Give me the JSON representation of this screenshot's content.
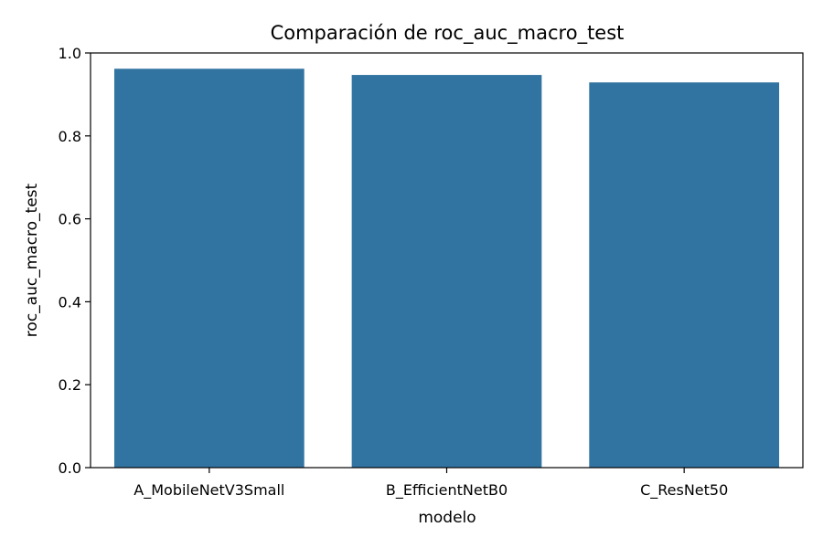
{
  "chart_data": {
    "type": "bar",
    "title": "Comparación de roc_auc_macro_test",
    "xlabel": "modelo",
    "ylabel": "roc_auc_macro_test",
    "categories": [
      "A_MobileNetV3Small",
      "B_EfficientNetB0",
      "C_ResNet50"
    ],
    "values": [
      0.962,
      0.947,
      0.929
    ],
    "ylim": [
      0,
      1.0
    ],
    "yticks": [
      "0.0",
      "0.2",
      "0.4",
      "0.6",
      "0.8",
      "1.0"
    ],
    "grid": false,
    "legend": "none",
    "bar_color": "#3274a1"
  }
}
